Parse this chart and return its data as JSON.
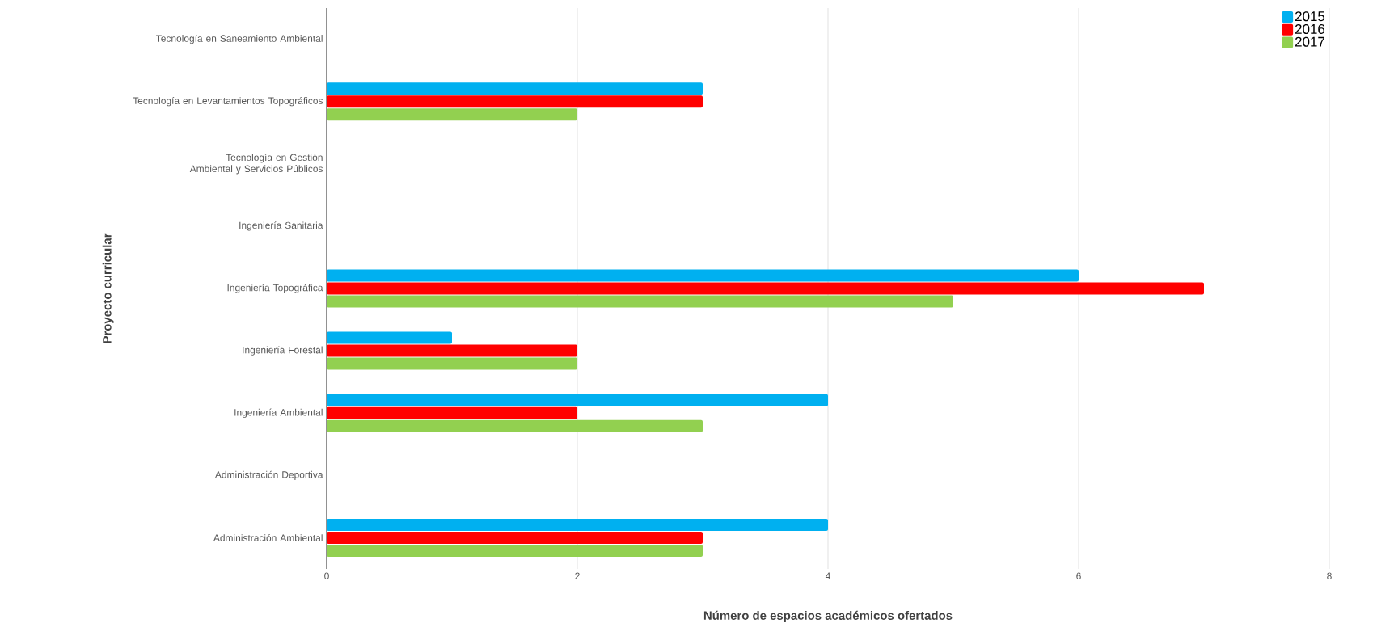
{
  "chart_data": {
    "type": "bar",
    "orientation": "horizontal",
    "categories": [
      "Tecnología en Saneamiento Ambiental",
      "Tecnología en Levantamientos Topográficos",
      "Tecnología en Gestión Ambiental y Servicios Públicos",
      "Ingeniería Sanitaria",
      "Ingeniería Topográfica",
      "Ingeniería Forestal",
      "Ingeniería Ambiental",
      "Administración Deportiva",
      "Administración Ambiental"
    ],
    "series": [
      {
        "name": "2015",
        "color": "#00b0f0",
        "values": [
          0,
          3,
          0,
          0,
          6,
          1,
          4,
          0,
          4
        ]
      },
      {
        "name": "2016",
        "color": "#ff0000",
        "values": [
          0,
          3,
          0,
          0,
          7,
          2,
          2,
          0,
          3
        ]
      },
      {
        "name": "2017",
        "color": "#92d050",
        "values": [
          0,
          2,
          0,
          0,
          5,
          2,
          3,
          0,
          3
        ]
      }
    ],
    "xlabel": "Número de espacios académicos ofertados",
    "ylabel": "Proyecto curricular",
    "xlim": [
      0,
      8
    ],
    "xticks": [
      0,
      2,
      4,
      6,
      8
    ],
    "grid": "x",
    "legend": "top right"
  }
}
